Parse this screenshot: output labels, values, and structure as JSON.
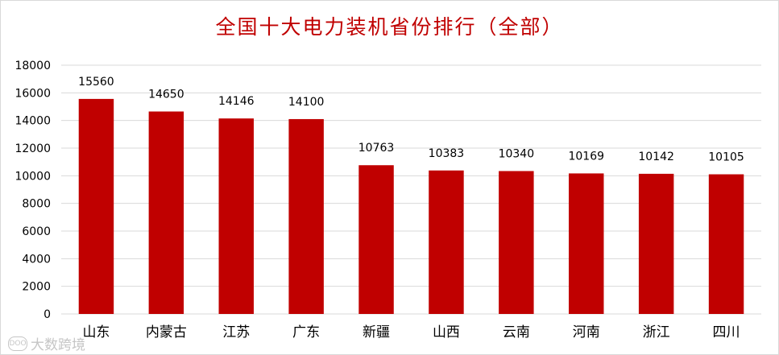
{
  "chart_data": {
    "type": "bar",
    "title": "全国十大电力装机省份排行（全部）",
    "categories": [
      "山东",
      "内蒙古",
      "江苏",
      "广东",
      "新疆",
      "山西",
      "云南",
      "河南",
      "浙江",
      "四川"
    ],
    "values": [
      15560,
      14650,
      14146,
      14100,
      10763,
      10383,
      10340,
      10169,
      10142,
      10105
    ],
    "ylim": [
      0,
      18000
    ],
    "yticks": [
      0,
      2000,
      4000,
      6000,
      8000,
      10000,
      12000,
      14000,
      16000,
      18000
    ],
    "xlabel": "",
    "ylabel": "",
    "grid": true,
    "legend": "none",
    "data_labels": true
  },
  "colors": {
    "bar": "#c00000",
    "title": "#c00000",
    "grid": "#d9d9d9",
    "text": "#000000"
  },
  "watermark": {
    "logo_text": "DOO",
    "text": "大数跨境"
  }
}
